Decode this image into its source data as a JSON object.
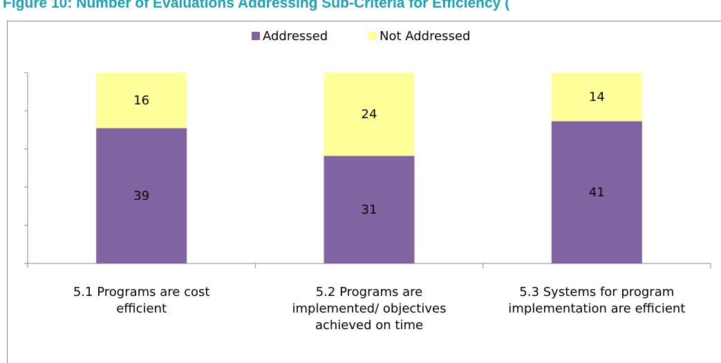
{
  "chart_data": {
    "type": "stacked_bar",
    "title": "Figure 10: Number of Evaluations Addressing Sub-Criteria for Efficiency (",
    "categories": [
      "5.1 Programs are cost efficient",
      "5.2 Programs are implemented/ objectives achieved on time",
      "5.3 Systems for program implementation are efficient"
    ],
    "series": [
      {
        "name": "Addressed",
        "color": "#8064a2",
        "values": [
          39,
          31,
          41
        ]
      },
      {
        "name": "Not Addressed",
        "color": "#ffff99",
        "values": [
          16,
          24,
          14
        ]
      }
    ],
    "ylim": [
      0,
      55
    ],
    "yticks": [
      0,
      11,
      22,
      33,
      44,
      55
    ],
    "legend": "top"
  }
}
